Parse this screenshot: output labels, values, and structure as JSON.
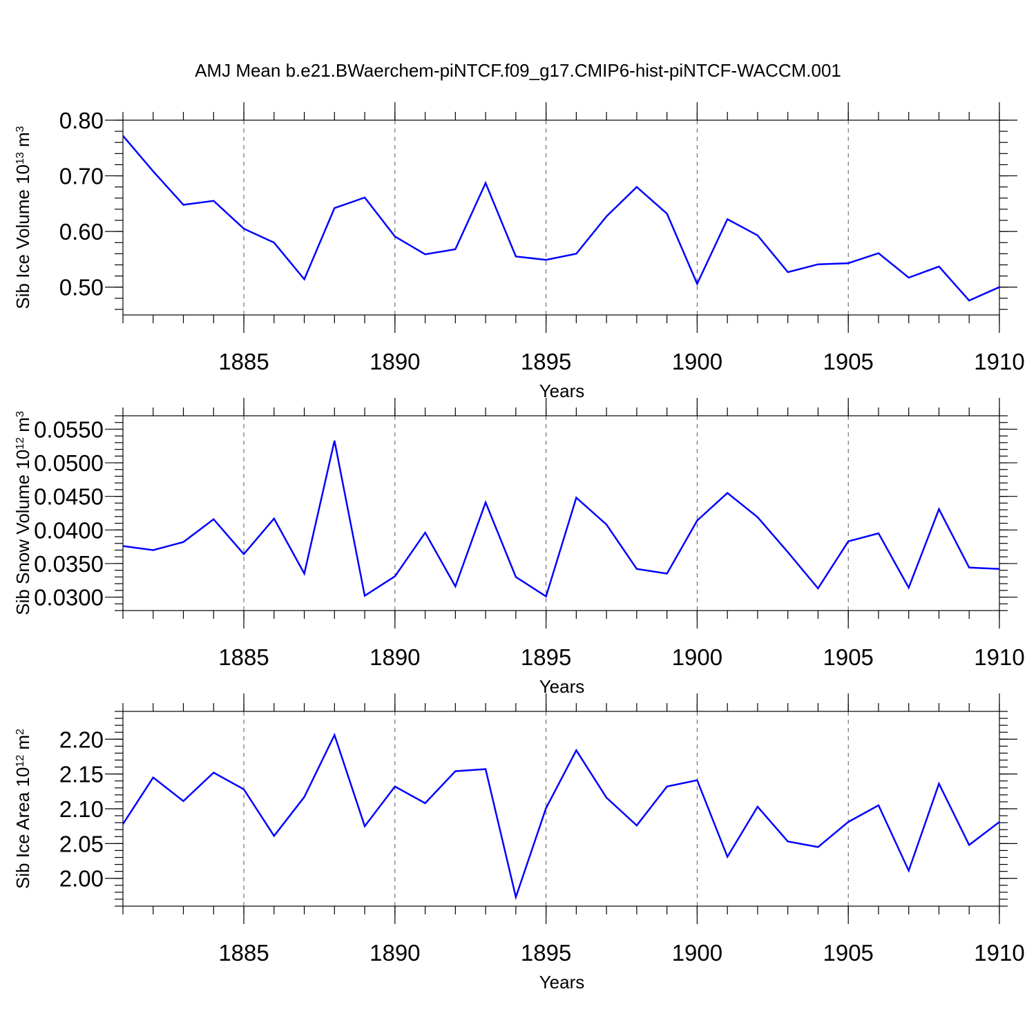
{
  "chart_data": [
    {
      "type": "line",
      "title": "AMJ Mean b.e21.BWaerchem-piNTCF.f09_g17.CMIP6-hist-piNTCF-WACCM.001",
      "xlabel": "Years",
      "ylabel": {
        "text": "Sib Ice Volume 10",
        "sup1": "13",
        "mid": " m",
        "sup2": "3"
      },
      "xlim": [
        1881,
        1910
      ],
      "ylim": [
        0.45,
        0.8
      ],
      "xticks": [
        "1885",
        "1890",
        "1895",
        "1900",
        "1905",
        "1910"
      ],
      "yticks": [
        "0.80",
        "0.70",
        "0.60",
        "0.50"
      ],
      "ytick_values": [
        0.8,
        0.7,
        0.6,
        0.5
      ],
      "color": "#0000ff",
      "grid": "vertical dashed at major x ticks",
      "x": [
        1881,
        1882,
        1883,
        1884,
        1885,
        1886,
        1887,
        1888,
        1889,
        1890,
        1891,
        1892,
        1893,
        1894,
        1895,
        1896,
        1897,
        1898,
        1899,
        1900,
        1901,
        1902,
        1903,
        1904,
        1905,
        1906,
        1907,
        1908,
        1909,
        1910
      ],
      "values": [
        0.772,
        0.708,
        0.648,
        0.655,
        0.605,
        0.58,
        0.514,
        0.642,
        0.661,
        0.591,
        0.559,
        0.568,
        0.687,
        0.555,
        0.549,
        0.56,
        0.627,
        0.68,
        0.632,
        0.506,
        0.622,
        0.593,
        0.527,
        0.541,
        0.543,
        0.561,
        0.517,
        0.537,
        0.476,
        0.5
      ]
    },
    {
      "type": "line",
      "title": "",
      "xlabel": "Years",
      "ylabel": {
        "text": "Sib Snow Volume 10",
        "sup1": "12",
        "mid": " m",
        "sup2": "3"
      },
      "xlim": [
        1881,
        1910
      ],
      "ylim": [
        0.028,
        0.057
      ],
      "xticks": [
        "1885",
        "1890",
        "1895",
        "1900",
        "1905",
        "1910"
      ],
      "yticks": [
        "0.0550",
        "0.0500",
        "0.0450",
        "0.0400",
        "0.0350",
        "0.0300"
      ],
      "ytick_values": [
        0.055,
        0.05,
        0.045,
        0.04,
        0.035,
        0.03
      ],
      "color": "#0000ff",
      "grid": "vertical dashed at major x ticks",
      "x": [
        1881,
        1882,
        1883,
        1884,
        1885,
        1886,
        1887,
        1888,
        1889,
        1890,
        1891,
        1892,
        1893,
        1894,
        1895,
        1896,
        1897,
        1898,
        1899,
        1900,
        1901,
        1902,
        1903,
        1904,
        1905,
        1906,
        1907,
        1908,
        1909,
        1910
      ],
      "values": [
        0.0376,
        0.037,
        0.0382,
        0.0416,
        0.0364,
        0.0417,
        0.0335,
        0.0533,
        0.0302,
        0.0331,
        0.0396,
        0.0316,
        0.0441,
        0.033,
        0.0301,
        0.0448,
        0.0408,
        0.0342,
        0.0335,
        0.0414,
        0.0455,
        0.0419,
        0.0367,
        0.0313,
        0.0383,
        0.0395,
        0.0314,
        0.0431,
        0.0344,
        0.0342
      ]
    },
    {
      "type": "line",
      "title": "",
      "xlabel": "Years",
      "ylabel": {
        "text": "Sib Ice Area 10",
        "sup1": "12",
        "mid": " m",
        "sup2": "2"
      },
      "xlim": [
        1881,
        1910
      ],
      "ylim": [
        1.96,
        2.24
      ],
      "xticks": [
        "1885",
        "1890",
        "1895",
        "1900",
        "1905",
        "1910"
      ],
      "yticks": [
        "2.20",
        "2.15",
        "2.10",
        "2.05",
        "2.00"
      ],
      "ytick_values": [
        2.2,
        2.15,
        2.1,
        2.05,
        2.0
      ],
      "color": "#0000ff",
      "grid": "vertical dashed at major x ticks",
      "x": [
        1881,
        1882,
        1883,
        1884,
        1885,
        1886,
        1887,
        1888,
        1889,
        1890,
        1891,
        1892,
        1893,
        1894,
        1895,
        1896,
        1897,
        1898,
        1899,
        1900,
        1901,
        1902,
        1903,
        1904,
        1905,
        1906,
        1907,
        1908,
        1909,
        1910
      ],
      "values": [
        2.078,
        2.145,
        2.111,
        2.152,
        2.128,
        2.061,
        2.117,
        2.206,
        2.075,
        2.132,
        2.108,
        2.154,
        2.157,
        1.973,
        2.101,
        2.184,
        2.116,
        2.076,
        2.132,
        2.141,
        2.031,
        2.103,
        2.053,
        2.045,
        2.081,
        2.105,
        2.011,
        2.136,
        2.048,
        2.081
      ]
    }
  ]
}
